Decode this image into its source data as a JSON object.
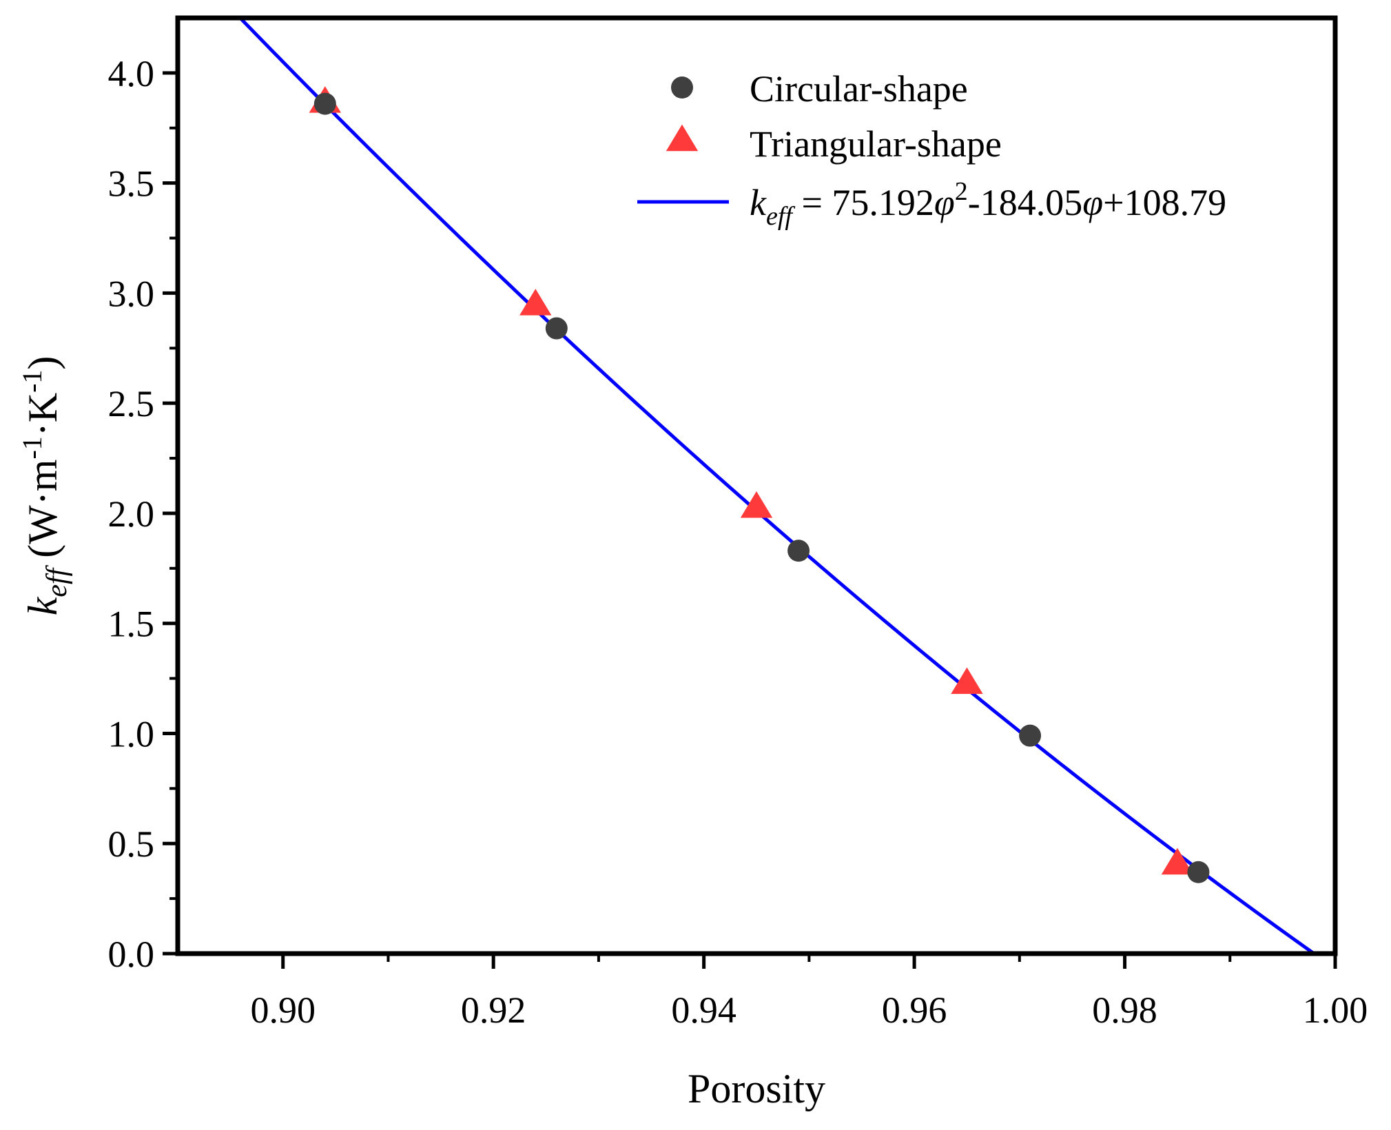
{
  "chart_data": {
    "type": "scatter",
    "xlabel": "Porosity",
    "ylabel": {
      "symbol": "k",
      "subscript": "eff",
      "units_open": " (W·m",
      "exp1": "-1",
      "units_mid": "·K",
      "exp2": "-1",
      "units_close": ")"
    },
    "xlim": [
      0.89,
      1.0
    ],
    "ylim": [
      0.0,
      4.25
    ],
    "xticks": [
      0.9,
      0.92,
      0.94,
      0.96,
      0.98,
      1.0
    ],
    "xtick_labels": [
      "0.90",
      "0.92",
      "0.94",
      "0.96",
      "0.98",
      "1.00"
    ],
    "yticks": [
      0.0,
      0.5,
      1.0,
      1.5,
      2.0,
      2.5,
      3.0,
      3.5,
      4.0
    ],
    "ytick_labels": [
      "0.0",
      "0.5",
      "1.0",
      "1.5",
      "2.0",
      "2.5",
      "3.0",
      "3.5",
      "4.0"
    ],
    "legend_position": "top-right",
    "series": [
      {
        "name": "Circular-shape",
        "marker": "circle",
        "color": "#3f3f3f",
        "x": [
          0.904,
          0.926,
          0.949,
          0.971,
          0.987
        ],
        "y": [
          3.86,
          2.84,
          1.83,
          0.99,
          0.37
        ]
      },
      {
        "name": "Triangular-shape",
        "marker": "triangle",
        "color": "#ff3a3a",
        "x": [
          0.904,
          0.924,
          0.945,
          0.965,
          0.985
        ],
        "y": [
          3.87,
          2.95,
          2.03,
          1.23,
          0.41
        ]
      }
    ],
    "fit": {
      "legend": {
        "symbol": "k",
        "subscript": "eff",
        "eq1": " = 75.192",
        "phi1": "φ",
        "sup": "2",
        "eq2": "-184.05",
        "phi2": "φ",
        "eq3": "+108.79"
      },
      "color": "#0000ff",
      "coefficients": [
        75.192,
        -184.05,
        108.79
      ],
      "x_range": [
        0.896,
        0.998
      ]
    }
  }
}
